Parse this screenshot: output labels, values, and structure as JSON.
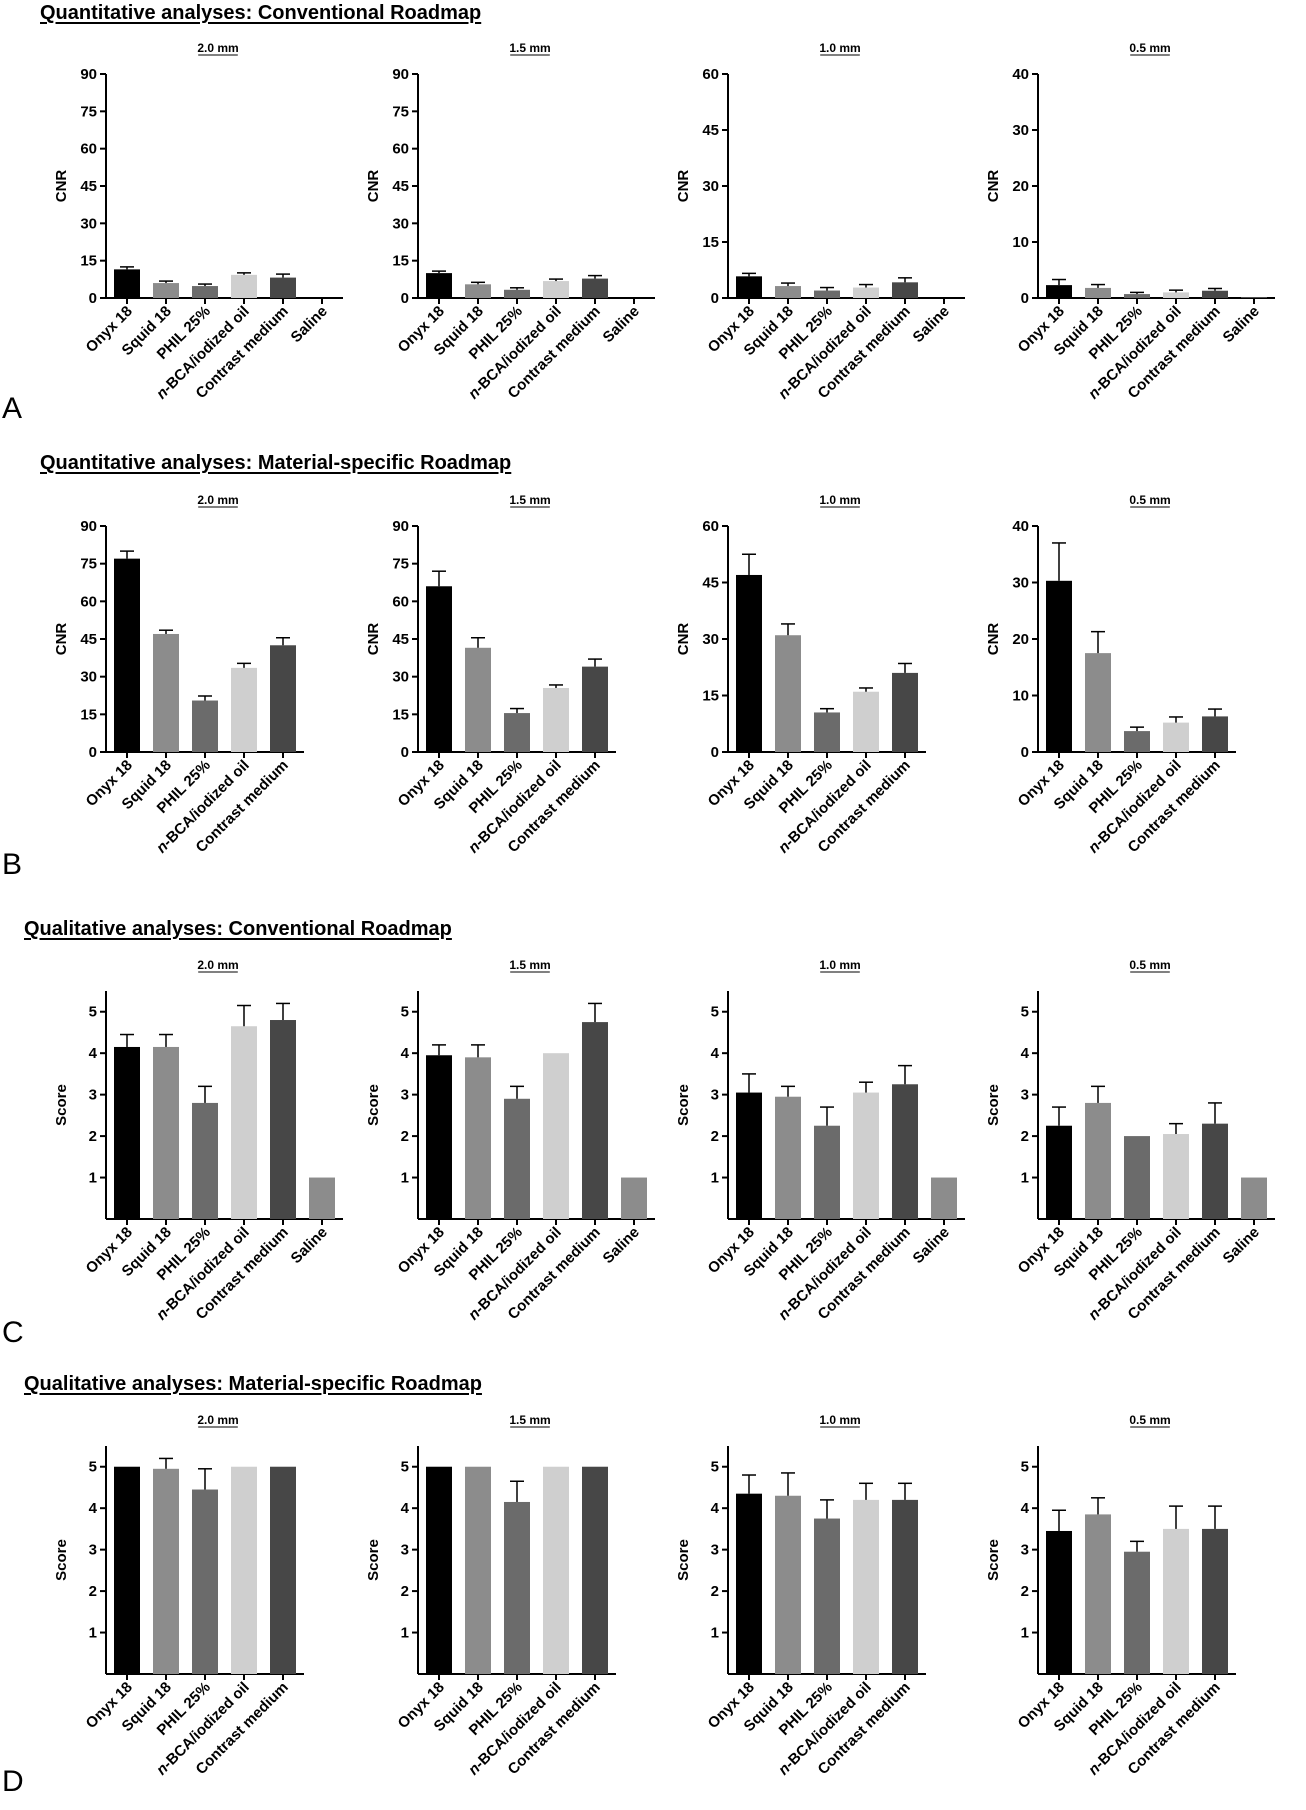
{
  "rows": [
    {
      "title": "Quantitative analyses: Conventional Roadmap",
      "letter": "A"
    },
    {
      "title": "Quantitative analyses: Material-specific Roadmap",
      "letter": "B"
    },
    {
      "title": "Qualitative analyses: Conventional Roadmap",
      "letter": "C"
    },
    {
      "title": "Qualitative analyses: Material-specific Roadmap",
      "letter": "D"
    }
  ],
  "colors": [
    "#000000",
    "#8c8c8c",
    "#6b6b6b",
    "#cfcfcf",
    "#474747",
    "#8c8c8c"
  ],
  "chart_data": [
    {
      "type": "bar",
      "row": 0,
      "title": "2.0 mm",
      "ylabel": "CNR",
      "ylim": [
        0,
        90
      ],
      "yticks": [
        0,
        15,
        30,
        45,
        60,
        75,
        90
      ],
      "categories": [
        "Onyx 18",
        "Squid 18",
        "PHIL 25%",
        "n-BCA/iodized oil",
        "Contrast medium",
        "Saline"
      ],
      "values": [
        11.5,
        6,
        4.8,
        9.3,
        8.2,
        0
      ],
      "errors": [
        1,
        0.8,
        0.8,
        0.8,
        1.4,
        0
      ]
    },
    {
      "type": "bar",
      "row": 0,
      "title": "1.5 mm",
      "ylabel": "CNR",
      "ylim": [
        0,
        90
      ],
      "yticks": [
        0,
        15,
        30,
        45,
        60,
        75,
        90
      ],
      "categories": [
        "Onyx 18",
        "Squid 18",
        "PHIL 25%",
        "n-BCA/iodized oil",
        "Contrast medium",
        "Saline"
      ],
      "values": [
        10,
        5.5,
        3.3,
        6.8,
        7.8,
        0
      ],
      "errors": [
        0.8,
        0.8,
        0.8,
        0.8,
        1.2,
        0
      ]
    },
    {
      "type": "bar",
      "row": 0,
      "title": "1.0 mm",
      "ylabel": "CNR",
      "ylim": [
        0,
        60
      ],
      "yticks": [
        0,
        15,
        30,
        45,
        60
      ],
      "categories": [
        "Onyx 18",
        "Squid 18",
        "PHIL 25%",
        "n-BCA/iodized oil",
        "Contrast medium",
        "Saline"
      ],
      "values": [
        5.8,
        3.2,
        2,
        2.8,
        4.2,
        0
      ],
      "errors": [
        0.8,
        0.8,
        0.8,
        0.8,
        1.2,
        0
      ]
    },
    {
      "type": "bar",
      "row": 0,
      "title": "0.5 mm",
      "ylabel": "CNR",
      "ylim": [
        0,
        40
      ],
      "yticks": [
        0,
        10,
        20,
        30,
        40
      ],
      "categories": [
        "Onyx 18",
        "Squid 18",
        "PHIL 25%",
        "n-BCA/iodized oil",
        "Contrast medium",
        "Saline"
      ],
      "values": [
        2.3,
        1.8,
        0.7,
        1,
        1.3,
        0.1
      ],
      "errors": [
        1,
        0.6,
        0.3,
        0.4,
        0.4,
        0
      ]
    },
    {
      "type": "bar",
      "row": 1,
      "title": "2.0 mm",
      "ylabel": "CNR",
      "ylim": [
        0,
        90
      ],
      "yticks": [
        0,
        15,
        30,
        45,
        60,
        75,
        90
      ],
      "categories": [
        "Onyx 18",
        "Squid 18",
        "PHIL 25%",
        "n-BCA/iodized oil",
        "Contrast medium"
      ],
      "values": [
        77,
        47,
        20.5,
        33.5,
        42.5
      ],
      "errors": [
        3,
        1.5,
        1.8,
        1.8,
        3
      ]
    },
    {
      "type": "bar",
      "row": 1,
      "title": "1.5 mm",
      "ylabel": "CNR",
      "ylim": [
        0,
        90
      ],
      "yticks": [
        0,
        15,
        30,
        45,
        60,
        75,
        90
      ],
      "categories": [
        "Onyx 18",
        "Squid 18",
        "PHIL 25%",
        "n-BCA/iodized oil",
        "Contrast medium"
      ],
      "values": [
        66,
        41.5,
        15.5,
        25.5,
        34
      ],
      "errors": [
        6,
        4,
        1.8,
        1.2,
        3
      ]
    },
    {
      "type": "bar",
      "row": 1,
      "title": "1.0 mm",
      "ylabel": "CNR",
      "ylim": [
        0,
        60
      ],
      "yticks": [
        0,
        15,
        30,
        45,
        60
      ],
      "categories": [
        "Onyx 18",
        "Squid 18",
        "PHIL 25%",
        "n-BCA/iodized oil",
        "Contrast medium"
      ],
      "values": [
        47,
        31,
        10.5,
        16,
        21
      ],
      "errors": [
        5.5,
        3,
        1,
        1,
        2.5
      ]
    },
    {
      "type": "bar",
      "row": 1,
      "title": "0.5 mm",
      "ylabel": "CNR",
      "ylim": [
        0,
        40
      ],
      "yticks": [
        0,
        10,
        20,
        30,
        40
      ],
      "categories": [
        "Onyx 18",
        "Squid 18",
        "PHIL 25%",
        "n-BCA/iodized oil",
        "Contrast medium"
      ],
      "values": [
        30.3,
        17.5,
        3.7,
        5.2,
        6.3
      ],
      "errors": [
        6.7,
        3.8,
        0.7,
        1,
        1.3
      ]
    },
    {
      "type": "bar",
      "row": 2,
      "title": "2.0 mm",
      "ylabel": "Score",
      "ylim": [
        0,
        5.5
      ],
      "yticks": [
        1,
        2,
        3,
        4,
        5
      ],
      "categories": [
        "Onyx 18",
        "Squid 18",
        "PHIL 25%",
        "n-BCA/iodized oil",
        "Contrast medium",
        "Saline"
      ],
      "values": [
        4.15,
        4.15,
        2.8,
        4.65,
        4.8,
        1
      ],
      "errors": [
        0.3,
        0.3,
        0.4,
        0.5,
        0.4,
        0
      ]
    },
    {
      "type": "bar",
      "row": 2,
      "title": "1.5 mm",
      "ylabel": "Score",
      "ylim": [
        0,
        5.5
      ],
      "yticks": [
        1,
        2,
        3,
        4,
        5
      ],
      "categories": [
        "Onyx 18",
        "Squid 18",
        "PHIL 25%",
        "n-BCA/iodized oil",
        "Contrast medium",
        "Saline"
      ],
      "values": [
        3.95,
        3.9,
        2.9,
        4,
        4.75,
        1
      ],
      "errors": [
        0.25,
        0.3,
        0.3,
        0,
        0.45,
        0
      ]
    },
    {
      "type": "bar",
      "row": 2,
      "title": "1.0 mm",
      "ylabel": "Score",
      "ylim": [
        0,
        5.5
      ],
      "yticks": [
        1,
        2,
        3,
        4,
        5
      ],
      "categories": [
        "Onyx 18",
        "Squid 18",
        "PHIL 25%",
        "n-BCA/iodized oil",
        "Contrast medium",
        "Saline"
      ],
      "values": [
        3.05,
        2.95,
        2.25,
        3.05,
        3.25,
        1
      ],
      "errors": [
        0.45,
        0.25,
        0.45,
        0.25,
        0.45,
        0
      ]
    },
    {
      "type": "bar",
      "row": 2,
      "title": "0.5 mm",
      "ylabel": "Score",
      "ylim": [
        0,
        5.5
      ],
      "yticks": [
        1,
        2,
        3,
        4,
        5
      ],
      "categories": [
        "Onyx 18",
        "Squid 18",
        "PHIL 25%",
        "n-BCA/iodized oil",
        "Contrast medium",
        "Saline"
      ],
      "values": [
        2.25,
        2.8,
        2,
        2.05,
        2.3,
        1
      ],
      "errors": [
        0.45,
        0.4,
        0,
        0.25,
        0.5,
        0
      ]
    },
    {
      "type": "bar",
      "row": 3,
      "title": "2.0 mm",
      "ylabel": "Score",
      "ylim": [
        0,
        5.5
      ],
      "yticks": [
        1,
        2,
        3,
        4,
        5
      ],
      "categories": [
        "Onyx 18",
        "Squid 18",
        "PHIL 25%",
        "n-BCA/iodized oil",
        "Contrast medium"
      ],
      "values": [
        5,
        4.95,
        4.45,
        5,
        5
      ],
      "errors": [
        0,
        0.25,
        0.5,
        0,
        0
      ]
    },
    {
      "type": "bar",
      "row": 3,
      "title": "1.5 mm",
      "ylabel": "Score",
      "ylim": [
        0,
        5.5
      ],
      "yticks": [
        1,
        2,
        3,
        4,
        5
      ],
      "categories": [
        "Onyx 18",
        "Squid 18",
        "PHIL 25%",
        "n-BCA/iodized oil",
        "Contrast medium"
      ],
      "values": [
        5,
        5,
        4.15,
        5,
        5
      ],
      "errors": [
        0,
        0,
        0.5,
        0,
        0
      ]
    },
    {
      "type": "bar",
      "row": 3,
      "title": "1.0 mm",
      "ylabel": "Score",
      "ylim": [
        0,
        5.5
      ],
      "yticks": [
        1,
        2,
        3,
        4,
        5
      ],
      "categories": [
        "Onyx 18",
        "Squid 18",
        "PHIL 25%",
        "n-BCA/iodized oil",
        "Contrast medium"
      ],
      "values": [
        4.35,
        4.3,
        3.75,
        4.2,
        4.2
      ],
      "errors": [
        0.45,
        0.55,
        0.45,
        0.4,
        0.4
      ]
    },
    {
      "type": "bar",
      "row": 3,
      "title": "0.5 mm",
      "ylabel": "Score",
      "ylim": [
        0,
        5.5
      ],
      "yticks": [
        1,
        2,
        3,
        4,
        5
      ],
      "categories": [
        "Onyx 18",
        "Squid 18",
        "PHIL 25%",
        "n-BCA/iodized oil",
        "Contrast medium"
      ],
      "values": [
        3.45,
        3.85,
        2.95,
        3.5,
        3.5
      ],
      "errors": [
        0.5,
        0.4,
        0.25,
        0.55,
        0.55
      ]
    }
  ]
}
